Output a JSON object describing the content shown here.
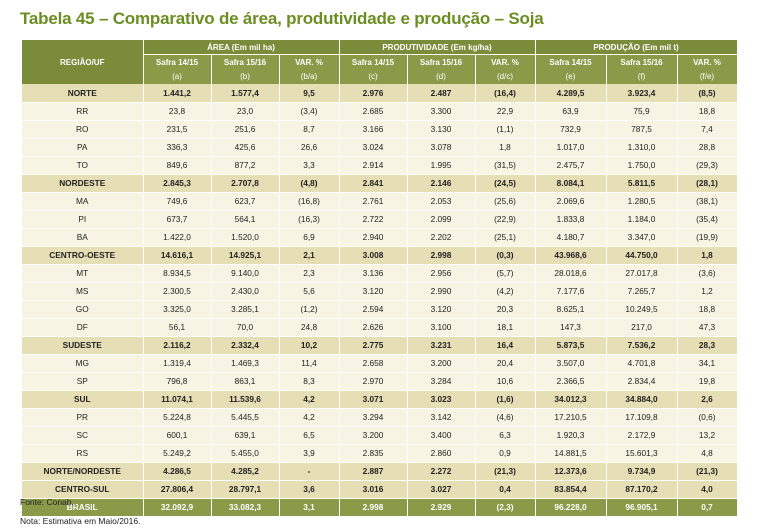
{
  "title": "Tabela 45 – Comparativo de área, produtividade e produção – Soja",
  "header": {
    "region_label": "REGIÃO/UF",
    "groups": [
      "ÁREA (Em mil ha)",
      "PRODUTIVIDADE (Em kg/ha)",
      "PRODUÇÃO (Em mil t)"
    ],
    "cols": [
      "Safra 14/15",
      "Safra 15/16",
      "VAR. %",
      "Safra 14/15",
      "Safra 15/16",
      "VAR. %",
      "Safra 14/15",
      "Safra 15/16",
      "VAR. %"
    ],
    "codes": [
      "(a)",
      "(b)",
      "(b/a)",
      "(c)",
      "(d)",
      "(d/c)",
      "(e)",
      "(f)",
      "(f/e)"
    ]
  },
  "rows": [
    {
      "kind": "agg",
      "region": "NORTE",
      "values": [
        "1.441,2",
        "1.577,4",
        "9,5",
        "2.976",
        "2.487",
        "(16,4)",
        "4.289,5",
        "3.923,4",
        "(8,5)"
      ]
    },
    {
      "kind": "uf",
      "region": "RR",
      "values": [
        "23,8",
        "23,0",
        "(3,4)",
        "2.685",
        "3.300",
        "22,9",
        "63,9",
        "75,9",
        "18,8"
      ]
    },
    {
      "kind": "uf",
      "region": "RO",
      "values": [
        "231,5",
        "251,6",
        "8,7",
        "3.166",
        "3.130",
        "(1,1)",
        "732,9",
        "787,5",
        "7,4"
      ]
    },
    {
      "kind": "uf",
      "region": "PA",
      "values": [
        "336,3",
        "425,6",
        "26,6",
        "3.024",
        "3.078",
        "1,8",
        "1.017,0",
        "1.310,0",
        "28,8"
      ]
    },
    {
      "kind": "uf",
      "region": "TO",
      "values": [
        "849,6",
        "877,2",
        "3,3",
        "2.914",
        "1.995",
        "(31,5)",
        "2.475,7",
        "1.750,0",
        "(29,3)"
      ]
    },
    {
      "kind": "agg",
      "region": "NORDESTE",
      "values": [
        "2.845,3",
        "2.707,8",
        "(4,8)",
        "2.841",
        "2.146",
        "(24,5)",
        "8.084,1",
        "5.811,5",
        "(28,1)"
      ]
    },
    {
      "kind": "uf",
      "region": "MA",
      "values": [
        "749,6",
        "623,7",
        "(16,8)",
        "2.761",
        "2.053",
        "(25,6)",
        "2.069,6",
        "1.280,5",
        "(38,1)"
      ]
    },
    {
      "kind": "uf",
      "region": "PI",
      "values": [
        "673,7",
        "564,1",
        "(16,3)",
        "2.722",
        "2.099",
        "(22,9)",
        "1.833,8",
        "1.184,0",
        "(35,4)"
      ]
    },
    {
      "kind": "uf",
      "region": "BA",
      "values": [
        "1.422,0",
        "1.520,0",
        "6,9",
        "2.940",
        "2.202",
        "(25,1)",
        "4.180,7",
        "3.347,0",
        "(19,9)"
      ]
    },
    {
      "kind": "agg",
      "region": "CENTRO-OESTE",
      "values": [
        "14.616,1",
        "14.925,1",
        "2,1",
        "3.008",
        "2.998",
        "(0,3)",
        "43.968,6",
        "44.750,0",
        "1,8"
      ]
    },
    {
      "kind": "uf",
      "region": "MT",
      "values": [
        "8.934,5",
        "9.140,0",
        "2,3",
        "3.136",
        "2.956",
        "(5,7)",
        "28.018,6",
        "27.017,8",
        "(3,6)"
      ]
    },
    {
      "kind": "uf",
      "region": "MS",
      "values": [
        "2.300,5",
        "2.430,0",
        "5,6",
        "3.120",
        "2.990",
        "(4,2)",
        "7.177,6",
        "7.265,7",
        "1,2"
      ]
    },
    {
      "kind": "uf",
      "region": "GO",
      "values": [
        "3.325,0",
        "3.285,1",
        "(1,2)",
        "2.594",
        "3.120",
        "20,3",
        "8.625,1",
        "10.249,5",
        "18,8"
      ]
    },
    {
      "kind": "uf",
      "region": "DF",
      "values": [
        "56,1",
        "70,0",
        "24,8",
        "2.626",
        "3.100",
        "18,1",
        "147,3",
        "217,0",
        "47,3"
      ]
    },
    {
      "kind": "agg",
      "region": "SUDESTE",
      "values": [
        "2.116,2",
        "2.332,4",
        "10,2",
        "2.775",
        "3.231",
        "16,4",
        "5.873,5",
        "7.536,2",
        "28,3"
      ]
    },
    {
      "kind": "uf",
      "region": "MG",
      "values": [
        "1.319,4",
        "1.469,3",
        "11,4",
        "2.658",
        "3.200",
        "20,4",
        "3.507,0",
        "4.701,8",
        "34,1"
      ]
    },
    {
      "kind": "uf",
      "region": "SP",
      "values": [
        "796,8",
        "863,1",
        "8,3",
        "2.970",
        "3.284",
        "10,6",
        "2.366,5",
        "2.834,4",
        "19,8"
      ]
    },
    {
      "kind": "agg",
      "region": "SUL",
      "values": [
        "11.074,1",
        "11.539,6",
        "4,2",
        "3.071",
        "3.023",
        "(1,6)",
        "34.012,3",
        "34.884,0",
        "2,6"
      ]
    },
    {
      "kind": "uf",
      "region": "PR",
      "values": [
        "5.224,8",
        "5.445,5",
        "4,2",
        "3.294",
        "3.142",
        "(4,6)",
        "17.210,5",
        "17.109,8",
        "(0,6)"
      ]
    },
    {
      "kind": "uf",
      "region": "SC",
      "values": [
        "600,1",
        "639,1",
        "6,5",
        "3.200",
        "3.400",
        "6,3",
        "1.920,3",
        "2.172,9",
        "13,2"
      ]
    },
    {
      "kind": "uf",
      "region": "RS",
      "values": [
        "5.249,2",
        "5.455,0",
        "3,9",
        "2.835",
        "2.860",
        "0,9",
        "14.881,5",
        "15.601,3",
        "4,8"
      ]
    },
    {
      "kind": "agg",
      "region": "NORTE/NORDESTE",
      "values": [
        "4.286,5",
        "4.285,2",
        "-",
        "2.887",
        "2.272",
        "(21,3)",
        "12.373,6",
        "9.734,9",
        "(21,3)"
      ]
    },
    {
      "kind": "agg",
      "region": "CENTRO-SUL",
      "values": [
        "27.806,4",
        "28.797,1",
        "3,6",
        "3.016",
        "3.027",
        "0,4",
        "83.854,4",
        "87.170,2",
        "4,0"
      ]
    },
    {
      "kind": "total",
      "region": "BRASIL",
      "values": [
        "32.092,9",
        "33.082,3",
        "3,1",
        "2.998",
        "2.929",
        "(2,3)",
        "96.228,0",
        "96.905,1",
        "0,7"
      ]
    }
  ],
  "footer": {
    "source": "Fonte: Conab..",
    "note": "Nota: Estimativa em  Maio/2016."
  }
}
